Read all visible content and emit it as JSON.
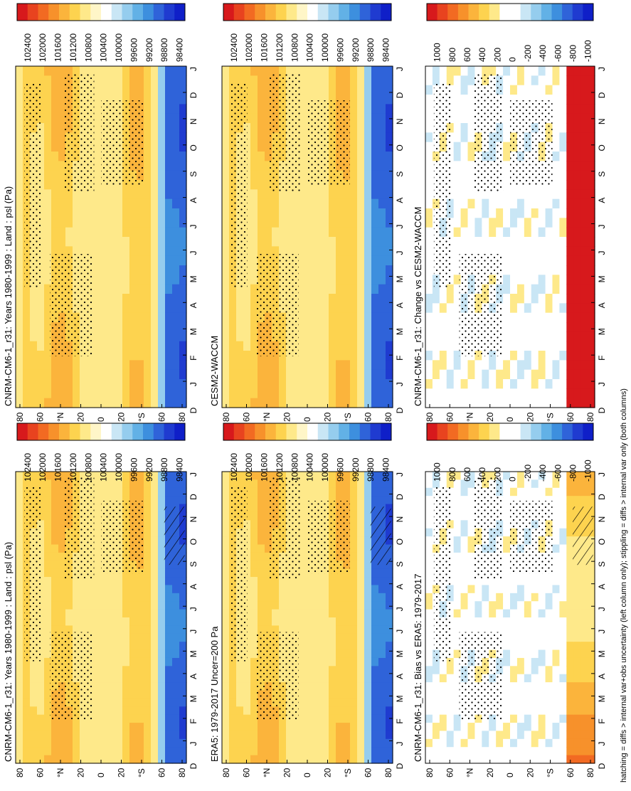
{
  "figure": {
    "footnote": "hatching = diffs > internal var+obs uncertainty (left column only); stippling = diffs > internal var only (both columns)"
  },
  "chart_data": [
    {
      "type": "heatmap",
      "title": "CNRM-CM6-1_r31: Years 1980-1999 : Land : psl (Pa)",
      "x_ticks": [
        "D",
        "J",
        "F",
        "M",
        "A",
        "M",
        "J",
        "J",
        "A",
        "S",
        "O",
        "N",
        "D",
        "J"
      ],
      "y_ticks": [
        "80",
        "60",
        "°N",
        "20",
        "0",
        "20",
        "°S",
        "60",
        "80"
      ],
      "colorbar_labels": [
        "102400",
        "102000",
        "101600",
        "101200",
        "100800",
        "100400",
        "100000",
        "99600",
        "99200",
        "98800",
        "98400"
      ],
      "hatched": true,
      "stippled": true
    },
    {
      "type": "heatmap",
      "title": "CNRM-CM6-1_r31: Years 1980-1999 : Land : psl (Pa)",
      "x_ticks": [
        "D",
        "J",
        "F",
        "M",
        "A",
        "M",
        "J",
        "J",
        "A",
        "S",
        "O",
        "N",
        "D",
        "J"
      ],
      "y_ticks": [
        "80",
        "60",
        "°N",
        "20",
        "0",
        "20",
        "°S",
        "60",
        "80"
      ],
      "colorbar_labels": [
        "102400",
        "102000",
        "101600",
        "101200",
        "100800",
        "100400",
        "100000",
        "99600",
        "99200",
        "98800",
        "98400"
      ],
      "hatched": false,
      "stippled": true
    },
    {
      "type": "heatmap",
      "title": "ERA5: 1979-2017 Uncer=200 Pa",
      "x_ticks": [
        "D",
        "J",
        "F",
        "M",
        "A",
        "M",
        "J",
        "J",
        "A",
        "S",
        "O",
        "N",
        "D",
        "J"
      ],
      "y_ticks": [
        "80",
        "60",
        "°N",
        "20",
        "0",
        "20",
        "°S",
        "60",
        "80"
      ],
      "colorbar_labels": [
        "102400",
        "102000",
        "101600",
        "101200",
        "100800",
        "100400",
        "100000",
        "99600",
        "99200",
        "98800",
        "98400"
      ],
      "hatched": true,
      "stippled": true
    },
    {
      "type": "heatmap",
      "title": "CESM2-WACCM",
      "x_ticks": [
        "D",
        "J",
        "F",
        "M",
        "A",
        "M",
        "J",
        "J",
        "A",
        "S",
        "O",
        "N",
        "D",
        "J"
      ],
      "y_ticks": [
        "80",
        "60",
        "°N",
        "20",
        "0",
        "20",
        "°S",
        "60",
        "80"
      ],
      "colorbar_labels": [
        "102400",
        "102000",
        "101600",
        "101200",
        "100800",
        "100400",
        "100000",
        "99600",
        "99200",
        "98800",
        "98400"
      ],
      "hatched": false,
      "stippled": true
    },
    {
      "type": "heatmap",
      "title": "CNRM-CM6-1_r31: Bias vs ERA5: 1979-2017",
      "x_ticks": [
        "D",
        "J",
        "F",
        "M",
        "A",
        "M",
        "J",
        "J",
        "A",
        "S",
        "O",
        "N",
        "D",
        "J"
      ],
      "y_ticks": [
        "80",
        "60",
        "°N",
        "20",
        "0",
        "20",
        "°S",
        "60",
        "80"
      ],
      "colorbar_labels": [
        "1000",
        "800",
        "600",
        "400",
        "200",
        "0",
        "-200",
        "-400",
        "-600",
        "-800",
        "-1000"
      ],
      "hatched": true,
      "stippled": true
    },
    {
      "type": "heatmap",
      "title": "CNRM-CM6-1_r31: Change vs CESM2-WACCM",
      "x_ticks": [
        "D",
        "J",
        "F",
        "M",
        "A",
        "M",
        "J",
        "J",
        "A",
        "S",
        "O",
        "N",
        "D",
        "J"
      ],
      "y_ticks": [
        "80",
        "60",
        "°N",
        "20",
        "0",
        "20",
        "°S",
        "60",
        "80"
      ],
      "colorbar_labels": [
        "1000",
        "800",
        "600",
        "400",
        "200",
        "0",
        "-200",
        "-400",
        "-600",
        "-800",
        "-1000"
      ],
      "hatched": false,
      "stippled": true
    }
  ],
  "colors": {
    "abs_scale": [
      "#d7191c",
      "#e8431f",
      "#f26a22",
      "#f7912b",
      "#fbb43c",
      "#fdd34f",
      "#fee98a",
      "#fff6c8",
      "#ffffff",
      "#c9e6f5",
      "#95cdee",
      "#62b1e6",
      "#3d8fde",
      "#2f63d9",
      "#1f3bd0",
      "#0f1fc8"
    ],
    "diff_scale": [
      "#d7191c",
      "#e8431f",
      "#f26a22",
      "#f7912b",
      "#fbb43c",
      "#fdd34f",
      "#fee98a",
      "#ffffff",
      "#ffffff",
      "#c9e6f5",
      "#95cdee",
      "#62b1e6",
      "#3d8fde",
      "#2f63d9",
      "#1f3bd0",
      "#0f1fc8"
    ]
  }
}
